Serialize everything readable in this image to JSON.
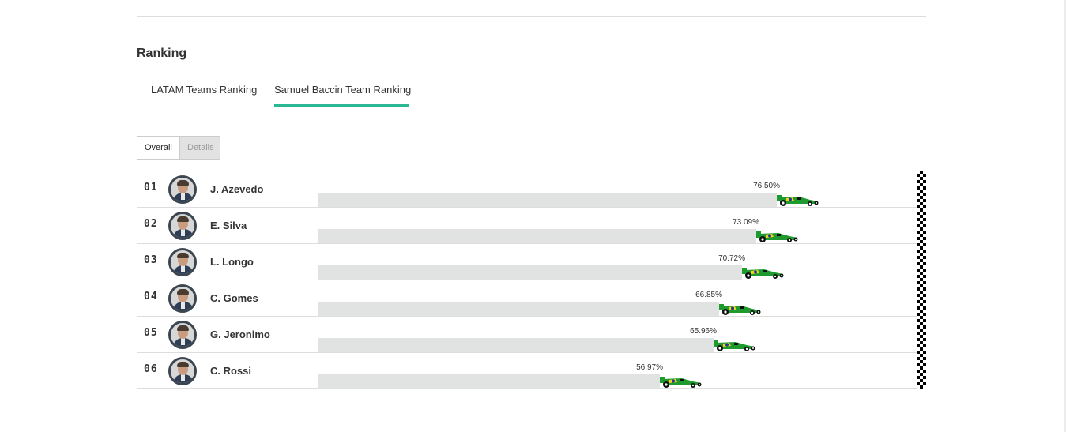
{
  "section": {
    "title": "Ranking"
  },
  "tabs": [
    {
      "label": "LATAM Teams Ranking",
      "active": false
    },
    {
      "label": "Samuel Baccin Team Ranking",
      "active": true
    }
  ],
  "view_toggle": {
    "overall_label": "Overall",
    "details_label": "Details",
    "selected": "Overall"
  },
  "colors": {
    "accent": "#2ab793",
    "bar": "#e1e2e2",
    "car_green": "#1f9a2e",
    "car_yellow": "#f3d31b",
    "car_blue": "#1c3b9c"
  },
  "icons": {
    "car": "race-car-icon",
    "finish": "checkered-flag-icon"
  },
  "rankings": [
    {
      "position": "01",
      "name": "J. Azevedo",
      "percent_label": "76.50%",
      "percent": 76.5
    },
    {
      "position": "02",
      "name": "E. Silva",
      "percent_label": "73.09%",
      "percent": 73.09
    },
    {
      "position": "03",
      "name": "L. Longo",
      "percent_label": "70.72%",
      "percent": 70.72
    },
    {
      "position": "04",
      "name": "C. Gomes",
      "percent_label": "66.85%",
      "percent": 66.85
    },
    {
      "position": "05",
      "name": "G. Jeronimo",
      "percent_label": "65.96%",
      "percent": 65.96
    },
    {
      "position": "06",
      "name": "C. Rossi",
      "percent_label": "56.97%",
      "percent": 56.97
    }
  ]
}
